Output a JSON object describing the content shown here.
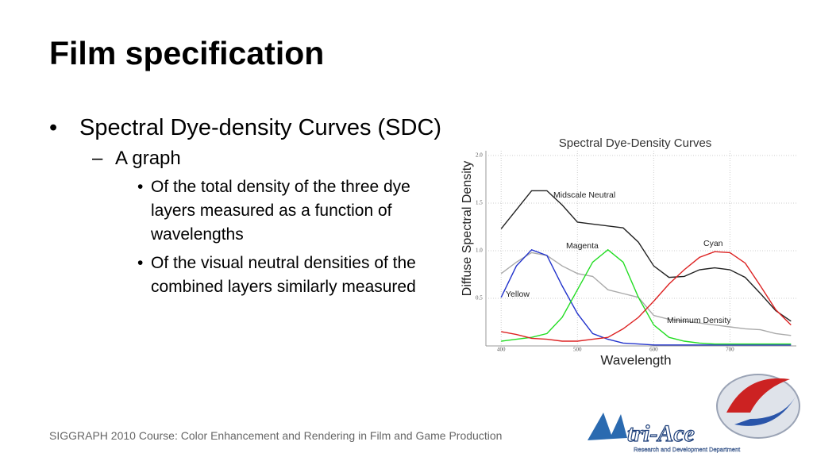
{
  "title": "Film specification",
  "bullets": [
    {
      "text": "Spectral Dye-density Curves (SDC)",
      "children": [
        {
          "text": "A graph",
          "children": [
            {
              "text": "Of the total density of the three dye layers measured as a function of wavelengths"
            },
            {
              "text": "Of the visual neutral densities of the combined layers similarly measured"
            }
          ]
        }
      ]
    }
  ],
  "footer": "SIGGRAPH 2010 Course: Color Enhancement and Rendering in Film and Game Production",
  "logo": {
    "name": "tri-Ace",
    "tagline": "Research and Development Department"
  },
  "chart_data": {
    "type": "line",
    "title": "Spectral Dye-Density Curves",
    "x_label": "Wavelength",
    "y_label": "Diffuse Spectral Density",
    "x": [
      400,
      420,
      440,
      460,
      480,
      500,
      520,
      540,
      560,
      580,
      600,
      620,
      640,
      660,
      680,
      700,
      720,
      740,
      760,
      780
    ],
    "series": [
      {
        "name": "Midscale Neutral",
        "color": "#222222",
        "values": [
          1.23,
          1.43,
          1.63,
          1.63,
          1.48,
          1.3,
          1.28,
          1.26,
          1.24,
          1.09,
          0.84,
          0.72,
          0.73,
          0.8,
          0.82,
          0.8,
          0.72,
          0.55,
          0.37,
          0.26
        ]
      },
      {
        "name": "Minimum Density",
        "color": "#aaaaaa",
        "values": [
          0.76,
          0.88,
          0.98,
          0.95,
          0.84,
          0.76,
          0.73,
          0.59,
          0.55,
          0.51,
          0.32,
          0.28,
          0.26,
          0.24,
          0.22,
          0.2,
          0.18,
          0.17,
          0.13,
          0.11
        ]
      },
      {
        "name": "Yellow",
        "color": "#2233cc",
        "values": [
          0.51,
          0.84,
          1.01,
          0.95,
          0.63,
          0.34,
          0.13,
          0.07,
          0.03,
          0.02,
          0.01,
          0.01,
          0.01,
          0.01,
          0.01,
          0.01,
          0.01,
          0.01,
          0.01,
          0.01
        ]
      },
      {
        "name": "Magenta",
        "color": "#22dd22",
        "values": [
          0.05,
          0.07,
          0.09,
          0.13,
          0.3,
          0.59,
          0.88,
          1.01,
          0.88,
          0.51,
          0.22,
          0.09,
          0.05,
          0.03,
          0.02,
          0.02,
          0.02,
          0.02,
          0.02,
          0.02
        ]
      },
      {
        "name": "Cyan",
        "color": "#dd2222",
        "values": [
          0.15,
          0.12,
          0.08,
          0.07,
          0.05,
          0.05,
          0.07,
          0.09,
          0.18,
          0.3,
          0.47,
          0.65,
          0.8,
          0.93,
          0.99,
          0.98,
          0.87,
          0.63,
          0.38,
          0.22
        ]
      }
    ],
    "xlim": [
      380,
      787
    ],
    "ylim": [
      0,
      2.05
    ],
    "xticks": [
      400,
      500,
      600,
      700
    ],
    "yticks": [
      {
        "value": 2.0,
        "label": "2.0"
      },
      1.5,
      {
        "value": 1.0,
        "label": "1.0"
      },
      0.5
    ],
    "grid": true
  }
}
